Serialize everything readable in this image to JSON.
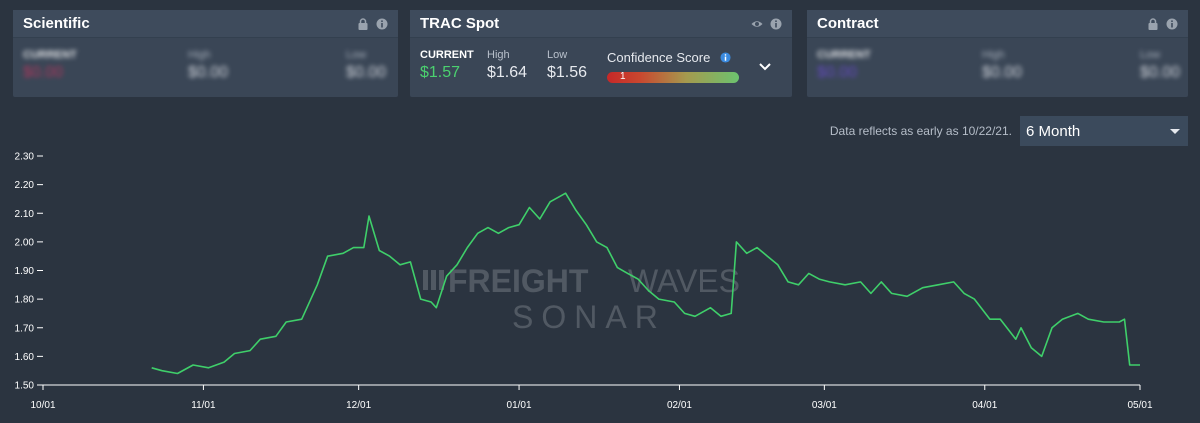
{
  "colors": {
    "background": "#2b3440",
    "card": "#3a4656",
    "line": "#3fcf6a",
    "current": "#4bd16f",
    "accent_blue": "#3b8be0"
  },
  "cards": [
    {
      "title": "Scientific",
      "icons": [
        "lock-icon",
        "info-icon"
      ],
      "current_label": "CURRENT",
      "high_label": "High",
      "low_label": "Low",
      "current": "$0.00",
      "high": "$0.00",
      "low": "$0.00",
      "blurred": true
    },
    {
      "title": "TRAC Spot",
      "icons": [
        "eye-icon",
        "info-icon"
      ],
      "current_label": "CURRENT",
      "high_label": "High",
      "low_label": "Low",
      "current": "$1.57",
      "high": "$1.64",
      "low": "$1.56",
      "blurred": false,
      "confidence_label": "Confidence Score",
      "confidence_value": "1",
      "confidence_score": 1
    },
    {
      "title": "Contract",
      "icons": [
        "lock-icon",
        "info-icon"
      ],
      "current_label": "CURRENT",
      "high_label": "High",
      "low_label": "Low",
      "current": "$0.00",
      "high": "$0.00",
      "low": "$0.00",
      "blurred": true
    }
  ],
  "data_note": "Data reflects as early as 10/22/21.",
  "range_select": {
    "value": "6 Month"
  },
  "watermark": {
    "line1_bold": "FREIGHT",
    "line1_light": "WAVES",
    "line2": "SONAR"
  },
  "chart_data": {
    "type": "line",
    "xlim": [
      "2021-10-01",
      "2022-05-01"
    ],
    "ylim": [
      1.5,
      2.3
    ],
    "x_ticks": [
      "10/01",
      "11/01",
      "12/01",
      "01/01",
      "02/01",
      "03/01",
      "04/01",
      "05/01"
    ],
    "y_ticks": [
      "1.50",
      "1.60",
      "1.70",
      "1.80",
      "1.90",
      "2.00",
      "2.10",
      "2.20",
      "2.30"
    ],
    "grid": false,
    "series": [
      {
        "values": [
          [
            "2021-10-22",
            1.56
          ],
          [
            "2021-10-24",
            1.55
          ],
          [
            "2021-10-27",
            1.54
          ],
          [
            "2021-10-30",
            1.57
          ],
          [
            "2021-11-02",
            1.56
          ],
          [
            "2021-11-05",
            1.58
          ],
          [
            "2021-11-07",
            1.61
          ],
          [
            "2021-11-10",
            1.62
          ],
          [
            "2021-11-12",
            1.66
          ],
          [
            "2021-11-15",
            1.67
          ],
          [
            "2021-11-17",
            1.72
          ],
          [
            "2021-11-20",
            1.73
          ],
          [
            "2021-11-23",
            1.85
          ],
          [
            "2021-11-25",
            1.95
          ],
          [
            "2021-11-28",
            1.96
          ],
          [
            "2021-11-30",
            1.98
          ],
          [
            "2021-12-02",
            1.98
          ],
          [
            "2021-12-03",
            2.09
          ],
          [
            "2021-12-05",
            1.97
          ],
          [
            "2021-12-07",
            1.95
          ],
          [
            "2021-12-09",
            1.92
          ],
          [
            "2021-12-11",
            1.93
          ],
          [
            "2021-12-13",
            1.8
          ],
          [
            "2021-12-15",
            1.79
          ],
          [
            "2021-12-16",
            1.77
          ],
          [
            "2021-12-18",
            1.88
          ],
          [
            "2021-12-20",
            1.92
          ],
          [
            "2021-12-22",
            1.98
          ],
          [
            "2021-12-24",
            2.03
          ],
          [
            "2021-12-26",
            2.05
          ],
          [
            "2021-12-28",
            2.03
          ],
          [
            "2021-12-30",
            2.05
          ],
          [
            "2022-01-01",
            2.06
          ],
          [
            "2022-01-03",
            2.12
          ],
          [
            "2022-01-05",
            2.08
          ],
          [
            "2022-01-07",
            2.14
          ],
          [
            "2022-01-09",
            2.16
          ],
          [
            "2022-01-10",
            2.17
          ],
          [
            "2022-01-12",
            2.11
          ],
          [
            "2022-01-14",
            2.06
          ],
          [
            "2022-01-16",
            2.0
          ],
          [
            "2022-01-18",
            1.98
          ],
          [
            "2022-01-20",
            1.91
          ],
          [
            "2022-01-22",
            1.89
          ],
          [
            "2022-01-24",
            1.87
          ],
          [
            "2022-01-26",
            1.83
          ],
          [
            "2022-01-28",
            1.8
          ],
          [
            "2022-01-31",
            1.79
          ],
          [
            "2022-02-02",
            1.75
          ],
          [
            "2022-02-04",
            1.74
          ],
          [
            "2022-02-07",
            1.77
          ],
          [
            "2022-02-09",
            1.74
          ],
          [
            "2022-02-11",
            1.75
          ],
          [
            "2022-02-12",
            2.0
          ],
          [
            "2022-02-14",
            1.96
          ],
          [
            "2022-02-16",
            1.98
          ],
          [
            "2022-02-18",
            1.95
          ],
          [
            "2022-02-20",
            1.92
          ],
          [
            "2022-02-22",
            1.86
          ],
          [
            "2022-02-24",
            1.85
          ],
          [
            "2022-02-26",
            1.89
          ],
          [
            "2022-02-28",
            1.87
          ],
          [
            "2022-03-02",
            1.86
          ],
          [
            "2022-03-05",
            1.85
          ],
          [
            "2022-03-08",
            1.86
          ],
          [
            "2022-03-10",
            1.82
          ],
          [
            "2022-03-12",
            1.86
          ],
          [
            "2022-03-14",
            1.82
          ],
          [
            "2022-03-17",
            1.81
          ],
          [
            "2022-03-20",
            1.84
          ],
          [
            "2022-03-23",
            1.85
          ],
          [
            "2022-03-26",
            1.86
          ],
          [
            "2022-03-28",
            1.82
          ],
          [
            "2022-03-30",
            1.8
          ],
          [
            "2022-04-02",
            1.73
          ],
          [
            "2022-04-04",
            1.73
          ],
          [
            "2022-04-07",
            1.66
          ],
          [
            "2022-04-08",
            1.7
          ],
          [
            "2022-04-10",
            1.63
          ],
          [
            "2022-04-12",
            1.6
          ],
          [
            "2022-04-14",
            1.7
          ],
          [
            "2022-04-16",
            1.73
          ],
          [
            "2022-04-19",
            1.75
          ],
          [
            "2022-04-21",
            1.73
          ],
          [
            "2022-04-24",
            1.72
          ],
          [
            "2022-04-27",
            1.72
          ],
          [
            "2022-04-28",
            1.73
          ],
          [
            "2022-04-29",
            1.57
          ],
          [
            "2022-05-01",
            1.57
          ]
        ]
      }
    ]
  }
}
